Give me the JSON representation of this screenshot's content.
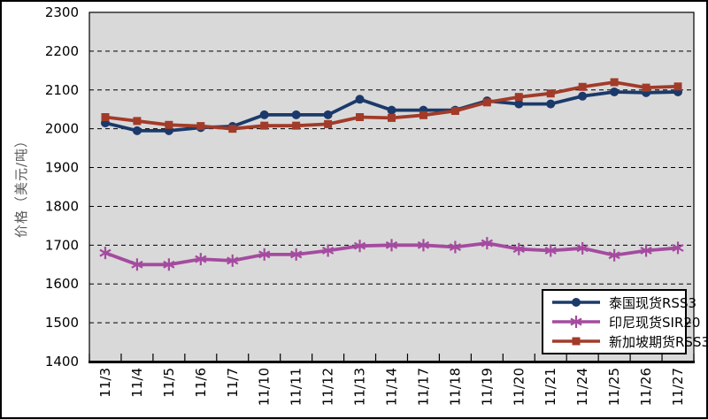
{
  "chart_data": {
    "type": "line",
    "title": "",
    "xlabel": "",
    "ylabel": "价格（美元/吨）",
    "ylim": [
      1400,
      2300
    ],
    "ytick_step": 100,
    "grid": "horizontal-dashed",
    "plot_bg": "#D9D9D9",
    "legend_position": "inside-bottom-right",
    "categories": [
      "11/3",
      "11/4",
      "11/5",
      "11/6",
      "11/7",
      "11/10",
      "11/11",
      "11/12",
      "11/13",
      "11/14",
      "11/17",
      "11/18",
      "11/19",
      "11/20",
      "11/21",
      "11/24",
      "11/25",
      "11/26",
      "11/27"
    ],
    "series": [
      {
        "name": "泰国现货RSS3",
        "marker": "circle",
        "color": "#1B3A6B",
        "values": [
          2015,
          1995,
          1995,
          2003,
          2006,
          2036,
          2036,
          2036,
          2076,
          2048,
          2048,
          2048,
          2072,
          2064,
          2064,
          2084,
          2095,
          2093,
          2095
        ]
      },
      {
        "name": "印尼现货SIR20",
        "marker": "asterisk",
        "color": "#A44B9F",
        "values": [
          1680,
          1650,
          1650,
          1664,
          1660,
          1676,
          1676,
          1686,
          1698,
          1700,
          1700,
          1695,
          1705,
          1690,
          1686,
          1692,
          1674,
          1686,
          1693
        ]
      },
      {
        "name": "新加坡期货RSS3",
        "marker": "square",
        "color": "#A23B29",
        "values": [
          2030,
          2020,
          2010,
          2007,
          2000,
          2008,
          2008,
          2012,
          2030,
          2028,
          2035,
          2046,
          2068,
          2082,
          2091,
          2108,
          2120,
          2106,
          2109
        ]
      }
    ]
  }
}
